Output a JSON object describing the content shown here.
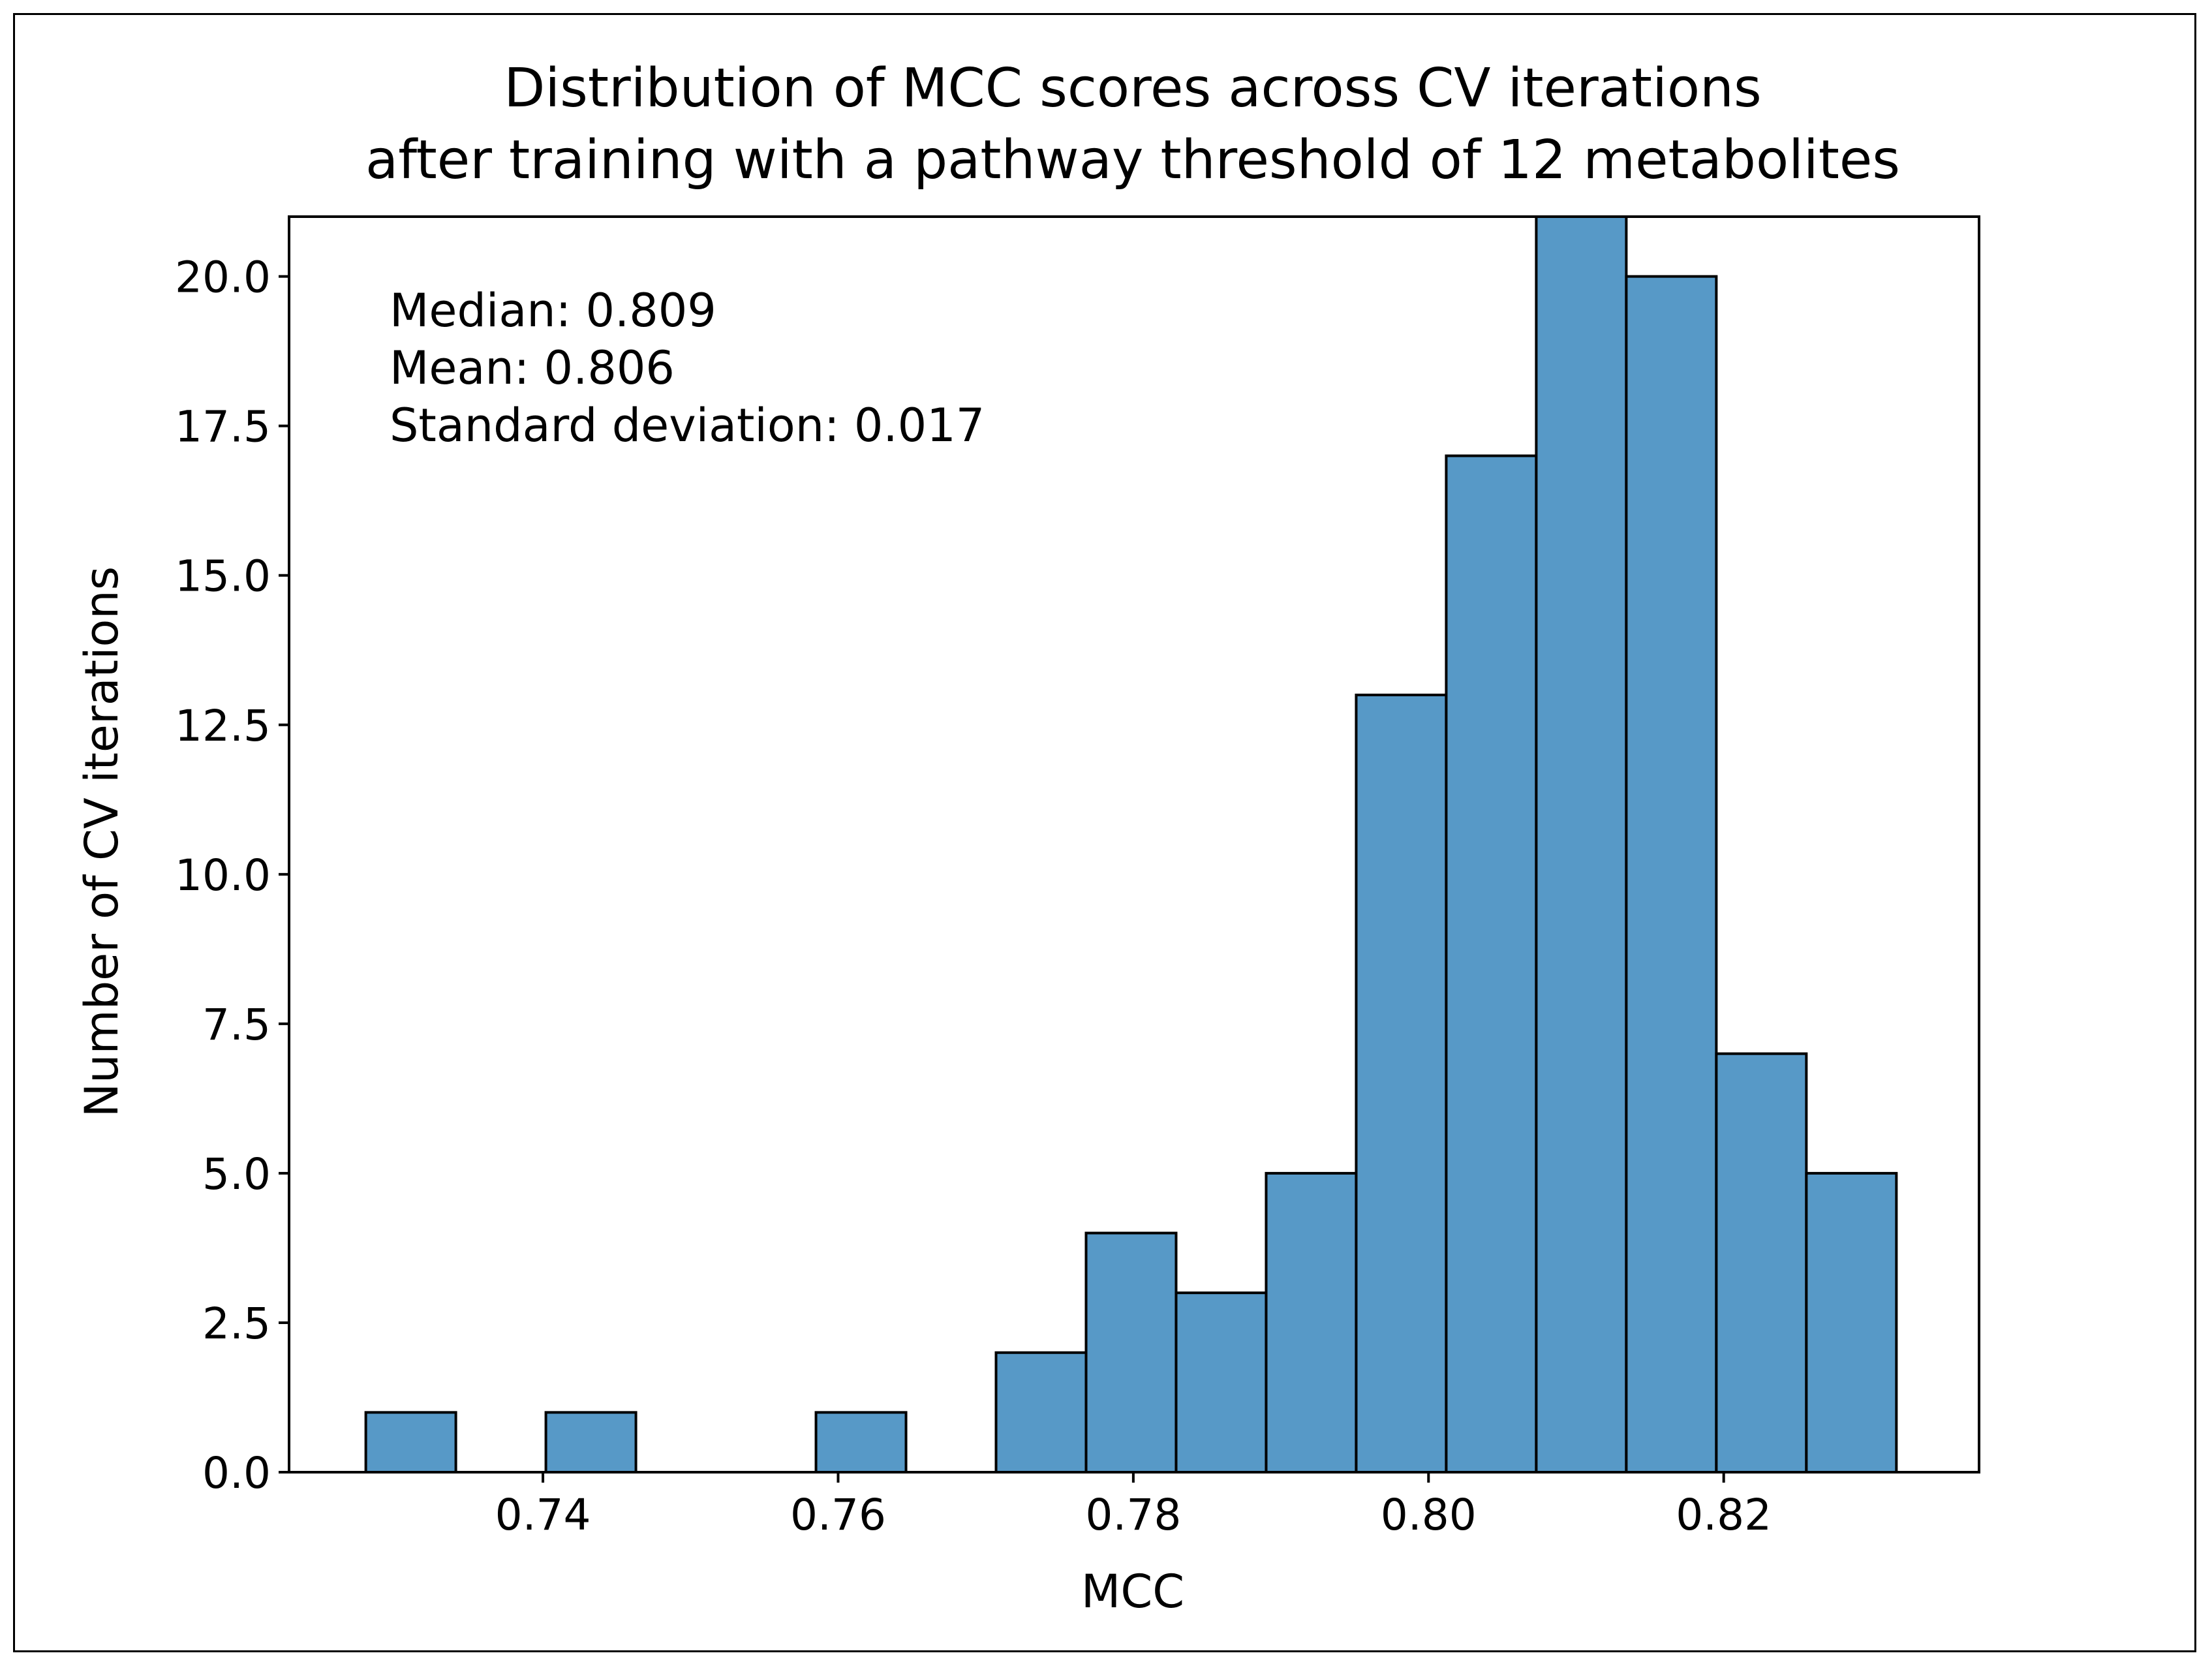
{
  "chart_data": {
    "type": "bar",
    "title_lines": [
      "Distribution of MCC scores across CV iterations",
      "after training with a pathway threshold of 12 metabolites"
    ],
    "xlabel": "MCC",
    "ylabel": "Number of CV iterations",
    "xlim": [
      0.7228,
      0.8373
    ],
    "ylim": [
      0,
      21.0
    ],
    "xticks": [
      0.74,
      0.76,
      0.78,
      0.8,
      0.82
    ],
    "xtick_labels": [
      "0.74",
      "0.76",
      "0.78",
      "0.80",
      "0.82"
    ],
    "yticks": [
      0.0,
      2.5,
      5.0,
      7.5,
      10.0,
      12.5,
      15.0,
      17.5,
      20.0
    ],
    "ytick_labels": [
      "0.0",
      "2.5",
      "5.0",
      "7.5",
      "10.0",
      "12.5",
      "15.0",
      "17.5",
      "20.0"
    ],
    "bin_edges": [
      0.728,
      0.7341,
      0.7402,
      0.7463,
      0.7524,
      0.7585,
      0.7646,
      0.7707,
      0.7768,
      0.7829,
      0.789,
      0.7951,
      0.8012,
      0.8073,
      0.8134,
      0.8195,
      0.8256,
      0.8317
    ],
    "values": [
      1,
      0,
      1,
      0,
      0,
      1,
      0,
      2,
      4,
      3,
      5,
      13,
      17,
      21,
      20,
      7,
      5
    ],
    "bar_color": "#5799c7",
    "edge_color": "#000000",
    "annotation_lines": [
      "Median: 0.809",
      "Mean: 0.806",
      "Standard deviation: 0.017"
    ],
    "annotation_position": "top-left"
  }
}
